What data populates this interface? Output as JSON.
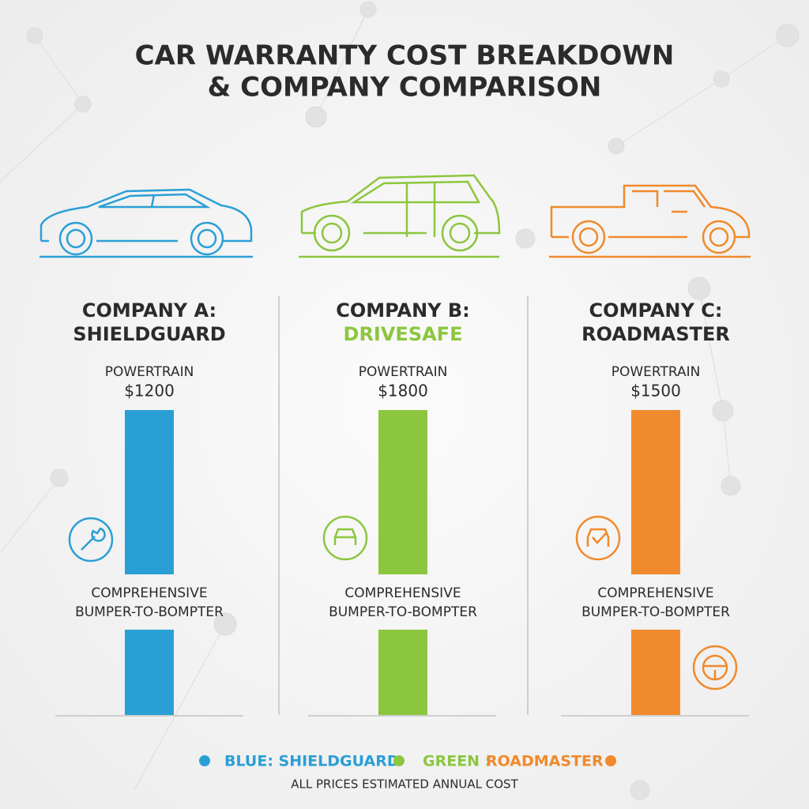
{
  "header": {
    "title_lines": [
      "CAR WARRANTY COST BREAKDOWN",
      "& COMPANY COMPARISON"
    ]
  },
  "companies": [
    {
      "label": "COMPANY A:",
      "name": "SHIELDGUARD",
      "powertrain": "POWERTRAIN",
      "price": "$1200",
      "comprehensive": [
        "COMPREHENSIVE",
        "BUMPER-TO-BOMPTER"
      ]
    },
    {
      "label": "COMPANY B:",
      "name": "DRIVESAFE",
      "powertrain": "POWERTRAIN",
      "price": "$1800",
      "comprehensive": [
        "COMPREHENSIVE",
        "BUMPER-TO-BOMPTER"
      ]
    },
    {
      "label": "COMPANY C:",
      "name": "ROADMASTER",
      "powertrain": "POWERTRAIN",
      "price": "$1500",
      "comprehensive": [
        "COMPREHENSIVE",
        "BUMPER-TO-BOMPTER"
      ]
    }
  ],
  "legend": {
    "blue": "BLUE: SHIELDGUARD",
    "green": "GREEN :",
    "orange": "ROADMASTER"
  },
  "footnote": "ALL PRICES ESTIMATED ANNUAL COST"
}
